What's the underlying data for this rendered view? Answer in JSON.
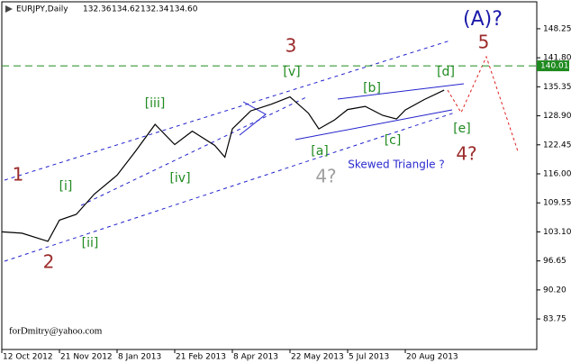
{
  "chart_data": {
    "type": "line",
    "header": {
      "symbol": "EURJPY,Daily",
      "quote": [
        132.36,
        134.62,
        132.34,
        {
          "value": 134.6,
          "label": "134.60"
        }
      ]
    },
    "series": [
      {
        "color": "#000000",
        "x": [
          "2012-10-12",
          "2012-10-26",
          "2012-11-13",
          "2012-11-21",
          "2012-12-05",
          "2012-12-20",
          "2013-01-08",
          "2013-01-22",
          "2013-02-06",
          "2013-02-21",
          "2013-03-07",
          "2013-03-25",
          "2013-04-02",
          "2013-04-08",
          "2013-04-22",
          "2013-05-08",
          "2013-05-22",
          "2013-06-05",
          "2013-06-13",
          "2013-06-25",
          "2013-07-05",
          "2013-07-19",
          "2013-08-02",
          "2013-08-13",
          "2013-08-20",
          "2013-09-04",
          "2013-09-20"
        ],
        "values": [
          103.1,
          102.8,
          101.0,
          105.7,
          107.0,
          111.5,
          115.7,
          121.0,
          127.0,
          122.5,
          125.5,
          122.3,
          119.7,
          126.0,
          130.0,
          131.5,
          133.1,
          129.5,
          126.0,
          128.0,
          130.3,
          131.0,
          129.0,
          128.2,
          130.2,
          132.5,
          134.6
        ]
      }
    ],
    "level": {
      "value": 140.01,
      "color": "#1f8a1f"
    },
    "ylim": [
      76.96,
      154.24
    ],
    "yticks": [
      148.25,
      {
        "value": 141.8,
        "label": "141.80"
      },
      135.35,
      {
        "value": 128.9,
        "label": "128.90"
      },
      122.45,
      {
        "value": 116,
        "label": "116.00"
      },
      109.55,
      {
        "value": 103.1,
        "label": "103.10"
      },
      96.65,
      {
        "value": 90.2,
        "label": "90.20"
      },
      83.75
    ],
    "xticks": [
      {
        "value": "2012-10-12",
        "label": "12 Oct 2012"
      },
      {
        "value": "2012-11-21",
        "label": "21 Nov 2012"
      },
      {
        "value": "2013-01-08",
        "label": "8 Jan 2013"
      },
      {
        "value": "2013-02-21",
        "label": "21 Feb 2013"
      },
      {
        "value": "2013-04-08",
        "label": "8 Apr 2013"
      },
      {
        "value": "2013-05-22",
        "label": "22 May 2013"
      },
      {
        "value": "2013-07-05",
        "label": "5 Jul 2013"
      },
      {
        "value": "2013-08-20",
        "label": "20 Aug 2013"
      }
    ],
    "annotations": [
      {
        "text": "(A)?",
        "color": "#1a1aa8"
      },
      {
        "text": "5",
        "color": "#9c2b2b"
      },
      {
        "text": "3",
        "color": "#9c2b2b"
      },
      {
        "text": "1",
        "color": "#9c2b2b"
      },
      {
        "text": "2",
        "color": "#9c2b2b"
      },
      {
        "text": "4?",
        "color": "#9c2b2b"
      },
      {
        "text": "4?",
        "color": "#a0a0a0"
      },
      {
        "text": "[v]",
        "color": "#1f8a1f"
      },
      {
        "text": "[iii]",
        "color": "#1f8a1f"
      },
      {
        "text": "[i]",
        "color": "#1f8a1f"
      },
      {
        "text": "[ii]",
        "color": "#1f8a1f"
      },
      {
        "text": "[iv]",
        "color": "#1f8a1f"
      },
      {
        "text": "[a]",
        "color": "#1f8a1f"
      },
      {
        "text": "[b]",
        "color": "#1f8a1f"
      },
      {
        "text": "[c]",
        "color": "#1f8a1f"
      },
      {
        "text": "[d]",
        "color": "#1f8a1f"
      },
      {
        "text": "[e]",
        "color": "#1f8a1f"
      },
      {
        "text": "Skewed Triangle ?",
        "color": "#2a2ad0"
      }
    ],
    "watermark": "forDmitry@yahoo.com"
  }
}
